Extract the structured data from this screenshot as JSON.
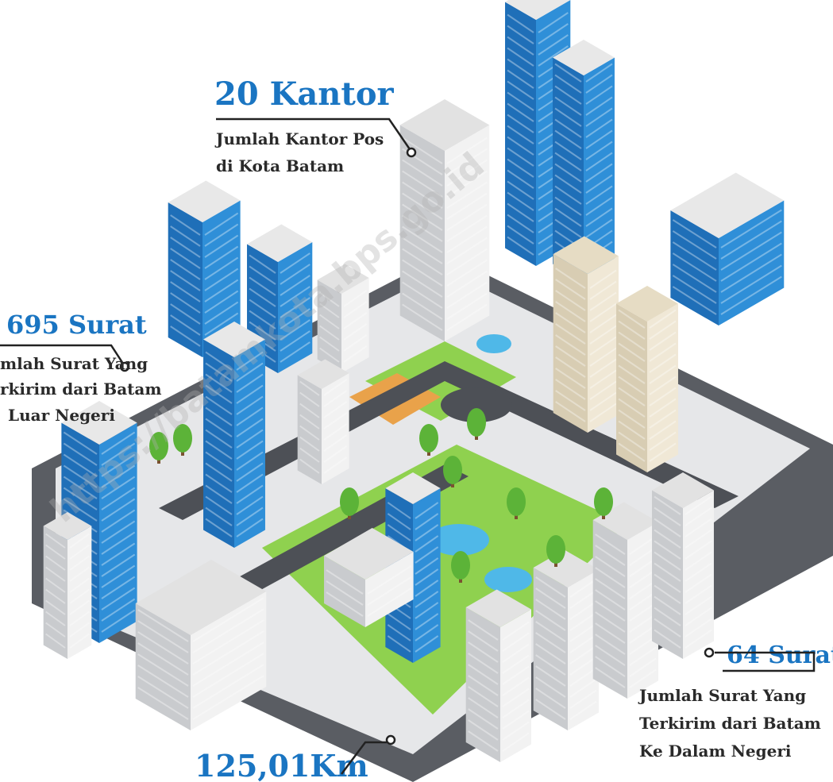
{
  "kantor": {
    "value": "20 Kantor",
    "lines": [
      "Jumlah Kantor Pos",
      "di Kota Batam"
    ]
  },
  "surat_luar": {
    "value": "695 Surat",
    "lines": [
      "mlah Surat Yang",
      "rkirim dari Batam",
      "Luar Negeri"
    ]
  },
  "surat_dalam": {
    "value": "64 Surat",
    "lines": [
      "Jumlah Surat Yang",
      "Terkirim dari Batam",
      "Ke Dalam Negeri"
    ]
  },
  "jalan": {
    "value": "125,01Km"
  },
  "watermark": "https://batamkota.bps.go.id"
}
